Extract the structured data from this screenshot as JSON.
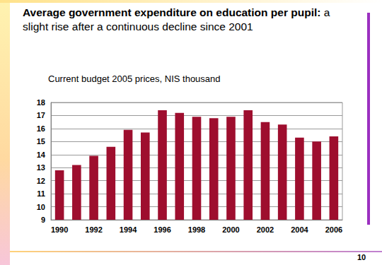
{
  "chart_data": {
    "type": "bar",
    "title": "Average government expenditure on education per pupil: a slight rise after a continuous decline since 2001",
    "subtitle": "Current budget 2005 prices, NIS thousand",
    "annotations": [
      "10"
    ],
    "categories": [
      "1990",
      null,
      "1992",
      null,
      "1994",
      null,
      "1996",
      null,
      "1998",
      null,
      "2000",
      null,
      "2002",
      null,
      "2004",
      null,
      "2006"
    ],
    "values": [
      12.8,
      13.2,
      13.9,
      14.6,
      15.9,
      15.7,
      17.4,
      17.2,
      16.9,
      16.8,
      16.9,
      17.4,
      16.5,
      16.3,
      15.3,
      15.0,
      15.4
    ],
    "color": "#9e0e2e",
    "ylim": [
      9,
      18
    ],
    "yticks": [
      9,
      10,
      11,
      12,
      13,
      14,
      15,
      16,
      17,
      18
    ],
    "grid": true
  }
}
